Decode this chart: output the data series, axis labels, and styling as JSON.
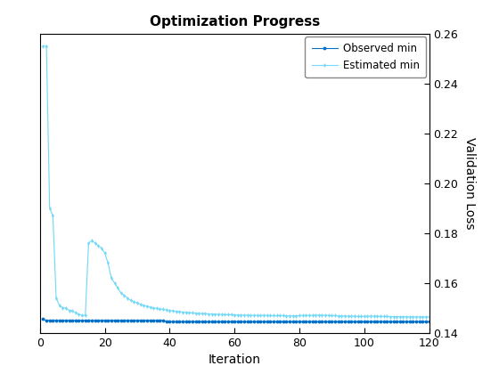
{
  "title": "Optimization Progress",
  "xlabel": "Iteration",
  "ylabel": "Validation Loss",
  "ylim": [
    0.14,
    0.26
  ],
  "xlim": [
    0,
    120
  ],
  "xticks": [
    0,
    20,
    40,
    60,
    80,
    100,
    120
  ],
  "yticks": [
    0.14,
    0.16,
    0.18,
    0.2,
    0.22,
    0.24,
    0.26
  ],
  "legend_labels": [
    "Observed min",
    "Estimated min"
  ],
  "observed_color": "#0070c8",
  "estimated_color": "#70d8f8",
  "background_color": "#ffffff",
  "observed_x": [
    1,
    2,
    3,
    4,
    5,
    6,
    7,
    8,
    9,
    10,
    11,
    12,
    13,
    14,
    15,
    16,
    17,
    18,
    19,
    20,
    21,
    22,
    23,
    24,
    25,
    26,
    27,
    28,
    29,
    30,
    31,
    32,
    33,
    34,
    35,
    36,
    37,
    38,
    39,
    40,
    41,
    42,
    43,
    44,
    45,
    46,
    47,
    48,
    49,
    50,
    51,
    52,
    53,
    54,
    55,
    56,
    57,
    58,
    59,
    60,
    61,
    62,
    63,
    64,
    65,
    66,
    67,
    68,
    69,
    70,
    71,
    72,
    73,
    74,
    75,
    76,
    77,
    78,
    79,
    80,
    81,
    82,
    83,
    84,
    85,
    86,
    87,
    88,
    89,
    90,
    91,
    92,
    93,
    94,
    95,
    96,
    97,
    98,
    99,
    100,
    101,
    102,
    103,
    104,
    105,
    106,
    107,
    108,
    109,
    110,
    111,
    112,
    113,
    114,
    115,
    116,
    117,
    118,
    119,
    120
  ],
  "observed_y": [
    0.1455,
    0.145,
    0.145,
    0.145,
    0.145,
    0.145,
    0.145,
    0.145,
    0.145,
    0.145,
    0.145,
    0.145,
    0.145,
    0.145,
    0.145,
    0.145,
    0.145,
    0.145,
    0.145,
    0.145,
    0.145,
    0.145,
    0.145,
    0.145,
    0.145,
    0.145,
    0.145,
    0.145,
    0.145,
    0.145,
    0.145,
    0.145,
    0.145,
    0.145,
    0.145,
    0.145,
    0.145,
    0.145,
    0.1445,
    0.1445,
    0.1445,
    0.1445,
    0.1445,
    0.1445,
    0.1445,
    0.1445,
    0.1445,
    0.1445,
    0.1445,
    0.1445,
    0.1445,
    0.1445,
    0.1445,
    0.1445,
    0.1445,
    0.1445,
    0.1445,
    0.1445,
    0.1445,
    0.1445,
    0.1445,
    0.1445,
    0.1445,
    0.1445,
    0.1445,
    0.1445,
    0.1445,
    0.1445,
    0.1445,
    0.1445,
    0.1445,
    0.1445,
    0.1445,
    0.1445,
    0.1445,
    0.1445,
    0.1445,
    0.1445,
    0.1445,
    0.1445,
    0.1445,
    0.1445,
    0.1445,
    0.1445,
    0.1445,
    0.1445,
    0.1445,
    0.1445,
    0.1445,
    0.1445,
    0.1445,
    0.1445,
    0.1445,
    0.1445,
    0.1445,
    0.1445,
    0.1445,
    0.1445,
    0.1445,
    0.1445,
    0.1445,
    0.1445,
    0.1445,
    0.1445,
    0.1445,
    0.1445,
    0.1445,
    0.1445,
    0.1445,
    0.1445,
    0.1445,
    0.1445,
    0.1445,
    0.1445,
    0.1445,
    0.1445,
    0.1445,
    0.1445,
    0.1445,
    0.1445
  ],
  "estimated_x": [
    1,
    2,
    3,
    4,
    5,
    6,
    7,
    8,
    9,
    10,
    11,
    12,
    13,
    14,
    15,
    16,
    17,
    18,
    19,
    20,
    21,
    22,
    23,
    24,
    25,
    26,
    27,
    28,
    29,
    30,
    31,
    32,
    33,
    34,
    35,
    36,
    37,
    38,
    39,
    40,
    41,
    42,
    43,
    44,
    45,
    46,
    47,
    48,
    49,
    50,
    51,
    52,
    53,
    54,
    55,
    56,
    57,
    58,
    59,
    60,
    61,
    62,
    63,
    64,
    65,
    66,
    67,
    68,
    69,
    70,
    71,
    72,
    73,
    74,
    75,
    76,
    77,
    78,
    79,
    80,
    81,
    82,
    83,
    84,
    85,
    86,
    87,
    88,
    89,
    90,
    91,
    92,
    93,
    94,
    95,
    96,
    97,
    98,
    99,
    100,
    101,
    102,
    103,
    104,
    105,
    106,
    107,
    108,
    109,
    110,
    111,
    112,
    113,
    114,
    115,
    116,
    117,
    118,
    119,
    120
  ],
  "estimated_y": [
    0.255,
    0.255,
    0.19,
    0.187,
    0.154,
    0.151,
    0.15,
    0.15,
    0.149,
    0.149,
    0.148,
    0.1475,
    0.147,
    0.147,
    0.176,
    0.177,
    0.176,
    0.175,
    0.174,
    0.172,
    0.168,
    0.162,
    0.16,
    0.158,
    0.156,
    0.155,
    0.154,
    0.153,
    0.1525,
    0.152,
    0.1515,
    0.151,
    0.1506,
    0.1503,
    0.15,
    0.1498,
    0.1496,
    0.1494,
    0.1492,
    0.149,
    0.1488,
    0.1486,
    0.1485,
    0.1483,
    0.1482,
    0.1481,
    0.148,
    0.1479,
    0.1478,
    0.1477,
    0.1477,
    0.1476,
    0.1475,
    0.1475,
    0.1474,
    0.1474,
    0.1473,
    0.1473,
    0.1473,
    0.1472,
    0.1472,
    0.1471,
    0.1471,
    0.1471,
    0.147,
    0.147,
    0.147,
    0.147,
    0.147,
    0.147,
    0.1469,
    0.1469,
    0.1469,
    0.1469,
    0.1469,
    0.1468,
    0.1468,
    0.1468,
    0.1468,
    0.1469,
    0.1469,
    0.147,
    0.147,
    0.147,
    0.1471,
    0.1471,
    0.1471,
    0.147,
    0.147,
    0.1469,
    0.1469,
    0.1468,
    0.1468,
    0.1468,
    0.1467,
    0.1467,
    0.1467,
    0.1466,
    0.1466,
    0.1466,
    0.1467,
    0.1467,
    0.1467,
    0.1467,
    0.1466,
    0.1466,
    0.1466,
    0.1465,
    0.1465,
    0.1465,
    0.1465,
    0.1465,
    0.1465,
    0.1464,
    0.1464,
    0.1464,
    0.1464,
    0.1464,
    0.1464,
    0.1464
  ]
}
